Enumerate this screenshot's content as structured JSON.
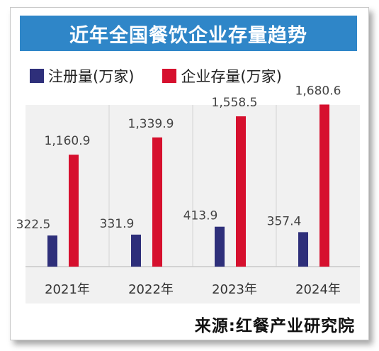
{
  "chart_data": {
    "type": "bar",
    "title": "近年全国餐饮企业存量趋势",
    "categories": [
      "2021年",
      "2022年",
      "2023年",
      "2024年"
    ],
    "series": [
      {
        "name": "注册量(万家)",
        "color": "#2e2f7a",
        "values": [
          322.5,
          331.9,
          413.9,
          357.4
        ],
        "labels": [
          "322.5",
          "331.9",
          "413.9",
          "357.4"
        ]
      },
      {
        "name": "企业存量(万家)",
        "color": "#d6102e",
        "values": [
          1160.9,
          1339.9,
          1558.5,
          1680.6
        ],
        "labels": [
          "1,160.9",
          "1,339.9",
          "1,558.5",
          "1,680.6"
        ]
      }
    ],
    "ylim": [
      0,
      2000
    ],
    "grid": false,
    "legend_position": "top-left"
  },
  "source": "来源:红餐产业研究院",
  "colors": {
    "title_bg": "#2f86c8",
    "panel_bg": "#f1f1f1"
  }
}
